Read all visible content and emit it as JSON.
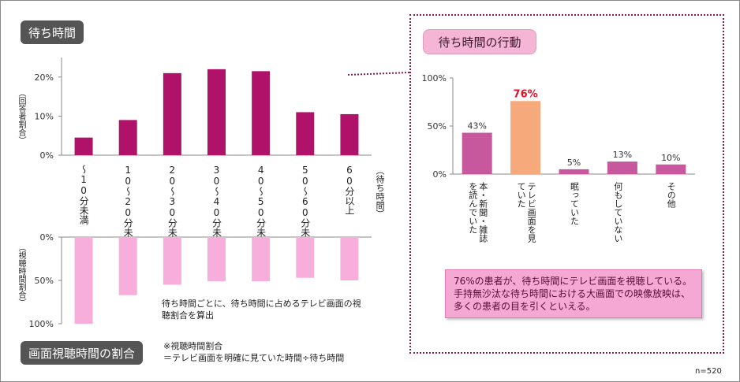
{
  "left_title": "待ち時間",
  "right_title": "待ち時間の行動",
  "bottom_title": "画面視聴時間の割合",
  "top_chart_ylabel": "（回答者割合）",
  "bottom_chart_ylabel": "（視聴時間割合）",
  "categories_axis_label": "（待ち時間）",
  "bottom_note": "待ち時間ごとに、待ち時間に占めるテレビ画面の視聴割合を算出",
  "footnote_line1": "※視聴時間割合",
  "footnote_line2": "＝テレビ画面を明確に見ていた時間÷待ち時間",
  "comment": "76%の患者が、待ち時間にテレビ画面を視聴している。手持無沙汰な待ち時間における大画面での映像放映は、多くの患者の目を引くといえる。",
  "n_label": "n=520",
  "chart_data": [
    {
      "type": "bar",
      "categories": [
        "～10分未満",
        "10～20分未満",
        "20～30分未満",
        "30～40分未満",
        "40～50分未満",
        "50～60分未満",
        "60分以上"
      ],
      "values": [
        4.5,
        9,
        21,
        22,
        21.5,
        11,
        10.5
      ],
      "ylim": [
        0,
        25
      ],
      "yticks": [
        "0%",
        "10%",
        "20%"
      ],
      "ylabel": "（回答者割合）",
      "xlabel": "（待ち時間）",
      "color": "#b0126a"
    },
    {
      "type": "bar",
      "orientation": "downward",
      "categories": [
        "～10分未満",
        "10～20分未満",
        "20～30分未満",
        "30～40分未満",
        "40～50分未満",
        "50～60分未満",
        "60分以上"
      ],
      "values": [
        100,
        67,
        55,
        51,
        51,
        47,
        50
      ],
      "ylim": [
        0,
        100
      ],
      "yticks": [
        "0%",
        "50%",
        "100%"
      ],
      "ylabel": "（視聴時間割合）",
      "color": "#f7aedb"
    },
    {
      "type": "bar",
      "title": "待ち時間の行動",
      "categories": [
        "本・新聞・雑誌を読んでいた",
        "テレビ画面を見ていた",
        "眠っていた",
        "何もしていない",
        "その他"
      ],
      "values": [
        43,
        76,
        5,
        13,
        10
      ],
      "data_labels": [
        "43%",
        "76%",
        "5%",
        "13%",
        "10%"
      ],
      "ylim": [
        0,
        100
      ],
      "yticks": [
        "0%",
        "50%",
        "100%"
      ],
      "colors": [
        "#c8589e",
        "#f6a97a",
        "#c8589e",
        "#c8589e",
        "#c8589e"
      ],
      "highlight_index": 1,
      "highlight_label_color": "#e0102a"
    }
  ]
}
